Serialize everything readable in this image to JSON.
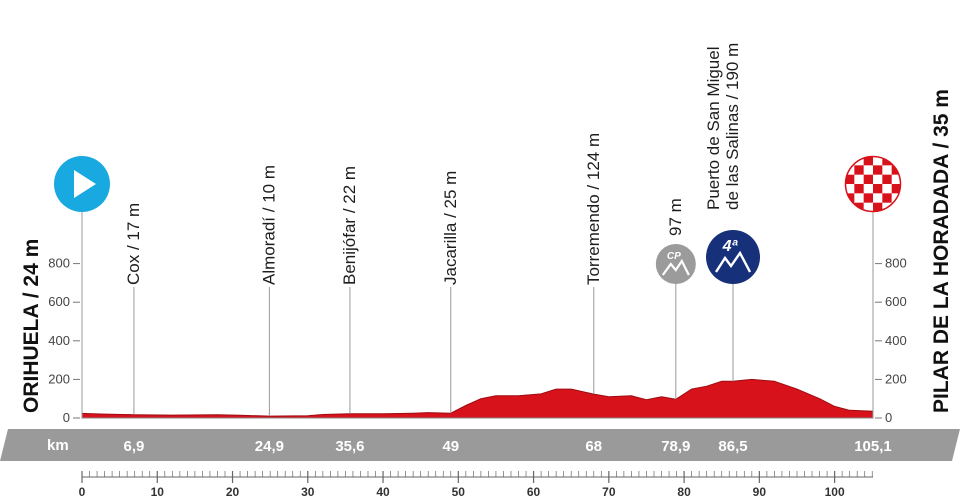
{
  "start_name": "ORIHUELA / 24 m",
  "finish_name": "PILAR DE LA HORADADA / 35 m",
  "km_label": "km",
  "chart_data": {
    "type": "area",
    "title": "",
    "xlabel": "",
    "ylabel": "",
    "xlim": [
      0,
      105.1
    ],
    "ylim": [
      0,
      900
    ],
    "y_ticks": [
      0,
      200,
      400,
      600,
      800
    ],
    "x_ticks": [
      0,
      10,
      20,
      30,
      40,
      50,
      60,
      70,
      80,
      90,
      100
    ],
    "fill_color": "#d8121b",
    "series": [
      {
        "x": [
          0,
          3,
          6.9,
          12,
          18,
          21,
          24.9,
          30,
          32,
          35.6,
          40,
          44,
          46,
          49,
          51,
          53,
          55,
          58,
          61,
          63,
          65,
          68,
          70,
          73,
          75,
          77,
          78.9,
          81,
          83,
          85,
          86.5,
          89,
          92,
          95,
          98,
          100,
          102,
          105.1
        ],
        "y": [
          24,
          20,
          17,
          15,
          17,
          14,
          10,
          12,
          18,
          22,
          22,
          25,
          28,
          25,
          65,
          100,
          115,
          115,
          125,
          150,
          150,
          124,
          110,
          115,
          95,
          110,
          97,
          150,
          165,
          190,
          190,
          200,
          190,
          150,
          100,
          60,
          40,
          35
        ]
      }
    ],
    "waypoints": [
      {
        "km": 6.9,
        "label": "Cox / 17 m"
      },
      {
        "km": 24.9,
        "label": "Almoradí / 10 m"
      },
      {
        "km": 35.6,
        "label": "Benijófar / 22 m"
      },
      {
        "km": 49,
        "label": "Jacarilla / 25 m"
      },
      {
        "km": 68,
        "label": "Torremendo / 124 m"
      },
      {
        "km": 78.9,
        "label": "97 m",
        "badge": "CP"
      },
      {
        "km": 86.5,
        "label": "Puerto de San Miguel\nde las Salinas  / 190 m",
        "badge": "4ª"
      }
    ],
    "band_values": [
      "6,9",
      "24,9",
      "35,6",
      "49",
      "68",
      "78,9",
      "86,5",
      "105,1"
    ],
    "start_icon": "play-icon",
    "finish_icon": "checkered-flag-icon"
  }
}
